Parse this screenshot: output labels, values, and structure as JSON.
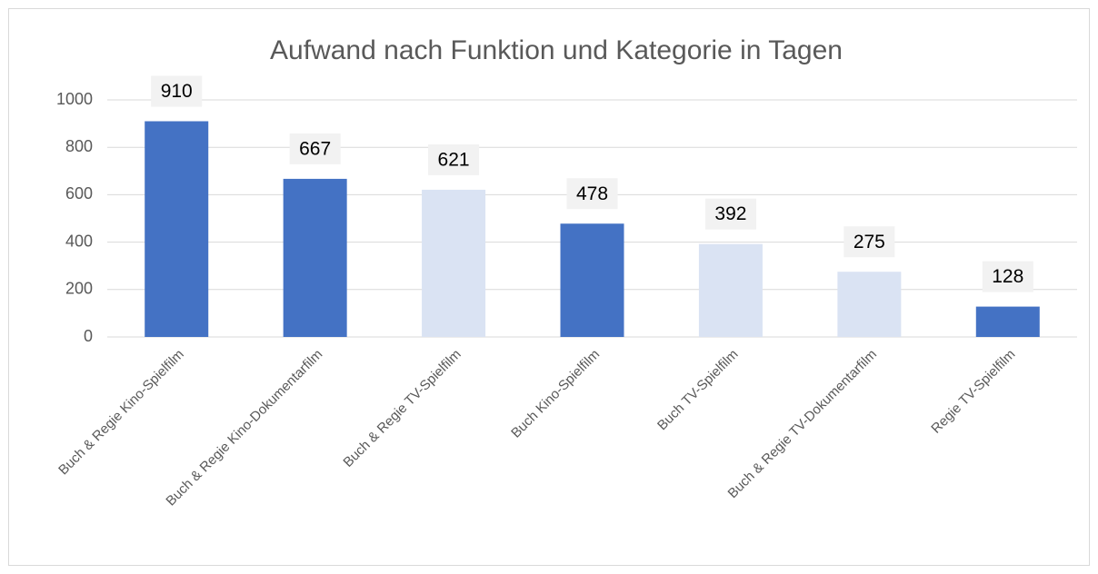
{
  "chart_data": {
    "type": "bar",
    "title": "Aufwand nach Funktion und Kategorie in Tagen",
    "categories": [
      "Buch & Regie Kino-Spielfilm",
      "Buch & Regie Kino-Dokumentarfilm",
      "Buch & Regie TV-Spielfilm",
      "Buch Kino-Spielfilm",
      "Buch TV-Spielfilm",
      "Buch & Regie TV-Dokumentarfilm",
      "Regie TV-Spielfilm"
    ],
    "values": [
      910,
      667,
      621,
      478,
      392,
      275,
      128
    ],
    "colors": [
      "#4472c4",
      "#4472c4",
      "#dae3f3",
      "#4472c4",
      "#dae3f3",
      "#dae3f3",
      "#4472c4"
    ],
    "ylim": [
      0,
      1000
    ],
    "yticks": [
      0,
      200,
      400,
      600,
      800,
      1000
    ],
    "grid": true
  }
}
